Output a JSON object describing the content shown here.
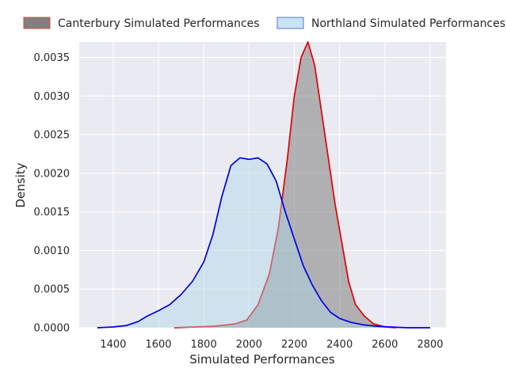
{
  "chart_data": {
    "type": "area",
    "title": "",
    "xlabel": "Simulated Performances",
    "ylabel": "Density",
    "xlim": [
      1250,
      2870
    ],
    "ylim": [
      0,
      0.0037
    ],
    "grid": true,
    "legend_position": "top",
    "x_ticks": [
      1400,
      1600,
      1800,
      2000,
      2200,
      2400,
      2600,
      2800
    ],
    "x_tick_labels": [
      "1400",
      "1600",
      "1800",
      "2000",
      "2200",
      "2400",
      "2600",
      "2800"
    ],
    "y_ticks": [
      0,
      0.0005,
      0.001,
      0.0015,
      0.002,
      0.0025,
      0.003,
      0.0035
    ],
    "y_tick_labels": [
      "0.0000",
      "0.0005",
      "0.0010",
      "0.0015",
      "0.0020",
      "0.0025",
      "0.0030",
      "0.0035"
    ],
    "series": [
      {
        "name": "Canterbury Simulated Performances",
        "line_color": "#e00000",
        "fill_color": "#808080",
        "fill_opacity": 0.55,
        "legend_edge_color": "#e04040",
        "x": [
          1670,
          1760,
          1850,
          1940,
          1990,
          2040,
          2090,
          2130,
          2170,
          2200,
          2230,
          2260,
          2290,
          2320,
          2350,
          2380,
          2410,
          2440,
          2470,
          2510,
          2550,
          2600,
          2650
        ],
        "y": [
          0.0,
          1e-05,
          2e-05,
          5e-05,
          0.0001,
          0.0003,
          0.0007,
          0.0013,
          0.0022,
          0.003,
          0.0035,
          0.0037,
          0.0034,
          0.0028,
          0.0022,
          0.0016,
          0.0011,
          0.0006,
          0.0003,
          0.00015,
          5e-05,
          1e-05,
          0.0
        ]
      },
      {
        "name": "Northland Simulated Performances",
        "line_color": "#0000e0",
        "fill_color": "#add8e6",
        "fill_opacity": 0.45,
        "legend_edge_color": "#5a6ee8",
        "x": [
          1330,
          1400,
          1460,
          1510,
          1550,
          1600,
          1650,
          1700,
          1750,
          1800,
          1840,
          1880,
          1920,
          1960,
          2000,
          2040,
          2080,
          2120,
          2160,
          2200,
          2240,
          2280,
          2320,
          2360,
          2400,
          2450,
          2500,
          2560,
          2620,
          2700,
          2800
        ],
        "y": [
          0.0,
          1e-05,
          3e-05,
          8e-05,
          0.00015,
          0.00022,
          0.0003,
          0.00043,
          0.0006,
          0.00085,
          0.0012,
          0.0017,
          0.0021,
          0.0022,
          0.00218,
          0.0022,
          0.00212,
          0.0019,
          0.0015,
          0.00115,
          0.0008,
          0.00055,
          0.00035,
          0.0002,
          0.00012,
          7e-05,
          4e-05,
          2e-05,
          1e-05,
          0.0,
          0.0
        ]
      }
    ]
  }
}
